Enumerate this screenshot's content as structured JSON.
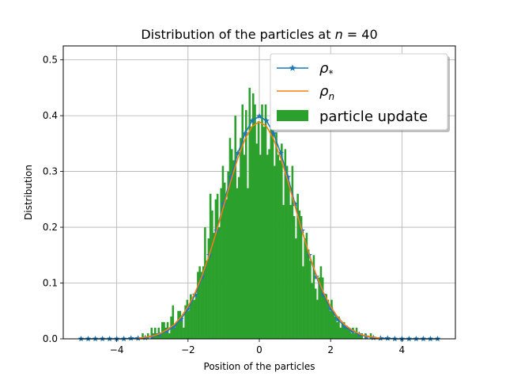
{
  "chart_data": {
    "type": "bar",
    "title": {
      "prefix": "Distribution of the particles at ",
      "italic_var": "n",
      "suffix": " = 40"
    },
    "xlabel": "Position of the particles",
    "ylabel": "Distribution",
    "xlim": [
      -5.5,
      5.5
    ],
    "ylim": [
      0,
      0.525
    ],
    "xticks": [
      -4,
      -2,
      0,
      2,
      4
    ],
    "xtick_labels": [
      "−4",
      "−2",
      "0",
      "2",
      "4"
    ],
    "yticks": [
      0.0,
      0.1,
      0.2,
      0.3,
      0.4,
      0.5
    ],
    "ytick_labels": [
      "0.0",
      "0.1",
      "0.2",
      "0.3",
      "0.4",
      "0.5"
    ],
    "grid": true,
    "legend": {
      "placement": "top-right",
      "entries": [
        {
          "symbol": "ρ",
          "sub": "*",
          "marker": "star-line",
          "color": "#1f77b4"
        },
        {
          "symbol": "ρ",
          "sub": "n",
          "marker": "line",
          "color": "#ff7f0e"
        },
        {
          "label": "particle update",
          "marker": "patch",
          "color": "#2ca02c"
        }
      ]
    },
    "series": [
      {
        "kind": "line-star",
        "color": "#1f77b4",
        "x": [
          -5.0,
          -4.8,
          -4.6,
          -4.4,
          -4.2,
          -4.0,
          -3.8,
          -3.6,
          -3.4,
          -3.2,
          -3.0,
          -2.8,
          -2.6,
          -2.4,
          -2.2,
          -2.0,
          -1.8,
          -1.6,
          -1.4,
          -1.2,
          -1.0,
          -0.8,
          -0.6,
          -0.4,
          -0.2,
          0.0,
          0.2,
          0.4,
          0.6,
          0.8,
          1.0,
          1.2,
          1.4,
          1.6,
          1.8,
          2.0,
          2.2,
          2.4,
          2.6,
          2.8,
          3.0,
          3.2,
          3.4,
          3.6,
          3.8,
          4.0,
          4.2,
          4.4,
          4.6,
          4.8,
          5.0
        ],
        "y": [
          0.0,
          0.0,
          0.0,
          0.0,
          0.0,
          0.0,
          0.0,
          0.001,
          0.001,
          0.002,
          0.004,
          0.008,
          0.014,
          0.022,
          0.035,
          0.054,
          0.079,
          0.111,
          0.15,
          0.194,
          0.242,
          0.29,
          0.333,
          0.368,
          0.391,
          0.399,
          0.391,
          0.368,
          0.333,
          0.29,
          0.242,
          0.194,
          0.15,
          0.111,
          0.079,
          0.054,
          0.035,
          0.022,
          0.014,
          0.008,
          0.004,
          0.002,
          0.001,
          0.001,
          0.0,
          0.0,
          0.0,
          0.0,
          0.0,
          0.0,
          0.0
        ]
      },
      {
        "kind": "line",
        "color": "#ff7f0e",
        "x": [
          -3.4,
          -3.2,
          -3.0,
          -2.8,
          -2.6,
          -2.4,
          -2.2,
          -2.0,
          -1.8,
          -1.6,
          -1.4,
          -1.2,
          -1.0,
          -0.8,
          -0.6,
          -0.4,
          -0.2,
          0.0,
          0.2,
          0.4,
          0.6,
          0.8,
          1.0,
          1.2,
          1.4,
          1.6,
          1.8,
          2.0,
          2.2,
          2.4,
          2.6,
          2.8,
          3.0,
          3.2,
          3.4
        ],
        "y": [
          0.001,
          0.003,
          0.005,
          0.009,
          0.016,
          0.025,
          0.039,
          0.058,
          0.083,
          0.114,
          0.151,
          0.193,
          0.238,
          0.283,
          0.324,
          0.358,
          0.381,
          0.389,
          0.381,
          0.358,
          0.324,
          0.283,
          0.238,
          0.193,
          0.151,
          0.114,
          0.083,
          0.058,
          0.039,
          0.025,
          0.016,
          0.009,
          0.005,
          0.003,
          0.001
        ]
      }
    ],
    "histogram": {
      "color": "#2ca02c",
      "bin_edges": [
        -3.4,
        -3.35,
        -3.3,
        -3.25,
        -3.2,
        -3.15,
        -3.1,
        -3.05,
        -3.0,
        -2.95,
        -2.9,
        -2.85,
        -2.8,
        -2.75,
        -2.7,
        -2.65,
        -2.6,
        -2.55,
        -2.5,
        -2.45,
        -2.4,
        -2.35,
        -2.3,
        -2.25,
        -2.2,
        -2.15,
        -2.1,
        -2.05,
        -2.0,
        -1.95,
        -1.9,
        -1.85,
        -1.8,
        -1.75,
        -1.7,
        -1.65,
        -1.6,
        -1.55,
        -1.5,
        -1.45,
        -1.4,
        -1.35,
        -1.3,
        -1.25,
        -1.2,
        -1.15,
        -1.1,
        -1.05,
        -1.0,
        -0.95,
        -0.9,
        -0.85,
        -0.8,
        -0.75,
        -0.7,
        -0.65,
        -0.6,
        -0.55,
        -0.5,
        -0.45,
        -0.4,
        -0.35,
        -0.3,
        -0.25,
        -0.2,
        -0.15,
        -0.1,
        -0.05,
        0.0,
        0.05,
        0.1,
        0.15,
        0.2,
        0.25,
        0.3,
        0.35,
        0.4,
        0.45,
        0.5,
        0.55,
        0.6,
        0.65,
        0.7,
        0.75,
        0.8,
        0.85,
        0.9,
        0.95,
        1.0,
        1.05,
        1.1,
        1.15,
        1.2,
        1.25,
        1.3,
        1.35,
        1.4,
        1.45,
        1.5,
        1.55,
        1.6,
        1.65,
        1.7,
        1.75,
        1.8,
        1.85,
        1.9,
        1.95,
        2.0,
        2.05,
        2.1,
        2.15,
        2.2,
        2.25,
        2.3,
        2.35,
        2.4,
        2.45,
        2.5,
        2.55,
        2.6,
        2.65,
        2.7,
        2.75,
        2.8,
        2.85,
        2.9,
        2.95,
        3.0,
        3.05,
        3.1,
        3.15,
        3.2,
        3.25,
        3.3,
        3.35,
        3.4
      ],
      "heights": [
        0.0,
        0.0,
        0.01,
        0.0,
        0.0,
        0.01,
        0.0,
        0.02,
        0.01,
        0.02,
        0.01,
        0.02,
        0.01,
        0.03,
        0.03,
        0.02,
        0.03,
        0.01,
        0.04,
        0.06,
        0.02,
        0.03,
        0.05,
        0.05,
        0.04,
        0.02,
        0.06,
        0.07,
        0.05,
        0.08,
        0.07,
        0.07,
        0.08,
        0.12,
        0.13,
        0.12,
        0.13,
        0.2,
        0.14,
        0.18,
        0.26,
        0.23,
        0.19,
        0.25,
        0.26,
        0.2,
        0.27,
        0.31,
        0.28,
        0.25,
        0.3,
        0.36,
        0.34,
        0.32,
        0.4,
        0.27,
        0.29,
        0.36,
        0.42,
        0.33,
        0.41,
        0.27,
        0.45,
        0.38,
        0.44,
        0.42,
        0.35,
        0.39,
        0.33,
        0.42,
        0.38,
        0.42,
        0.33,
        0.34,
        0.39,
        0.45,
        0.31,
        0.37,
        0.33,
        0.32,
        0.35,
        0.24,
        0.34,
        0.31,
        0.28,
        0.24,
        0.31,
        0.22,
        0.18,
        0.26,
        0.23,
        0.22,
        0.13,
        0.18,
        0.19,
        0.16,
        0.14,
        0.1,
        0.15,
        0.09,
        0.07,
        0.11,
        0.13,
        0.11,
        0.08,
        0.08,
        0.07,
        0.05,
        0.07,
        0.05,
        0.04,
        0.03,
        0.04,
        0.02,
        0.03,
        0.03,
        0.02,
        0.02,
        0.02,
        0.01,
        0.02,
        0.01,
        0.02,
        0.01,
        0.01,
        0.01,
        0.0,
        0.01,
        0.0,
        0.0,
        0.01,
        0.0,
        0.0,
        0.0,
        0.0,
        0.0
      ]
    }
  }
}
